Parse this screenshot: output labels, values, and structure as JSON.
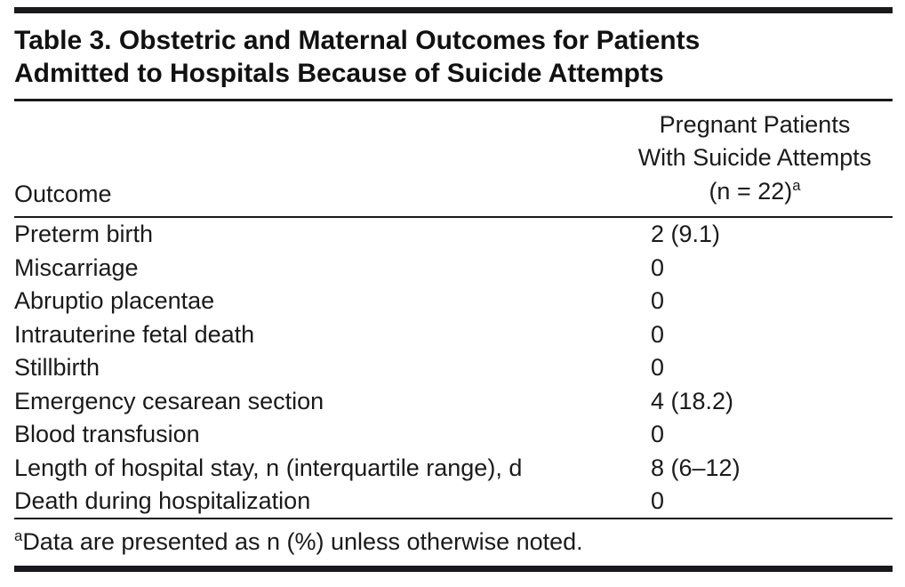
{
  "colors": {
    "background": "#ffffff",
    "text": "#1a1a1a",
    "rule": "#17191c"
  },
  "table": {
    "title": "Table 3. Obstetric and Maternal Outcomes for Patients Admitted to Hospitals Because of Suicide Attempts",
    "col1_header": "Outcome",
    "col2_header": {
      "line1": "Pregnant Patients",
      "line2": "With Suicide Attempts",
      "line3": "(n = 22)"
    },
    "rows": [
      {
        "outcome": "Preterm birth",
        "value": "2 (9.1)"
      },
      {
        "outcome": "Miscarriage",
        "value": "0"
      },
      {
        "outcome": "Abruptio placentae",
        "value": "0"
      },
      {
        "outcome": "Intrauterine fetal death",
        "value": "0"
      },
      {
        "outcome": "Stillbirth",
        "value": "0"
      },
      {
        "outcome": "Emergency cesarean section",
        "value": "4 (18.2)"
      },
      {
        "outcome": "Blood transfusion",
        "value": "0"
      },
      {
        "outcome": "Length of hospital stay, n (interquartile range), d",
        "value": "8 (6–12)"
      },
      {
        "outcome": "Death during hospitalization",
        "value": "0"
      }
    ],
    "footnote": {
      "marker": "a",
      "text": "Data are presented as n (%) unless otherwise noted."
    }
  }
}
